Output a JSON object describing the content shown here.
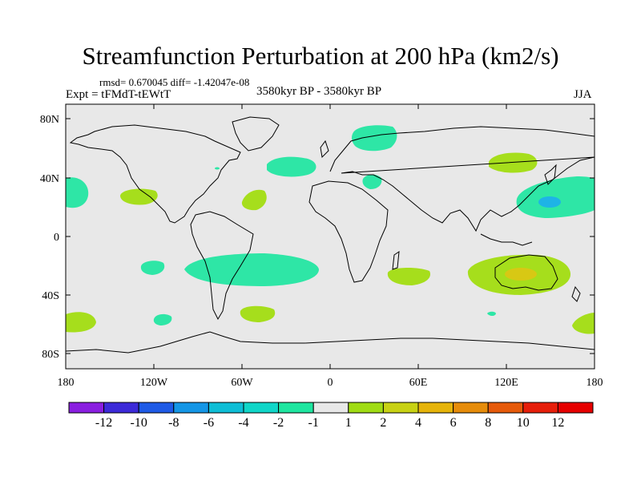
{
  "title": "Streamfunction Perturbation at 200 hPa (km2/s)",
  "stats": "rmsd= 0.670045 diff= -1.42047e-08",
  "experiment": "Expt = tFMdT-tEWtT",
  "period": "3580kyr BP - 3580kyr BP",
  "season": "JJA",
  "map": {
    "lat_ticks": [
      "80N",
      "40N",
      "0",
      "40S",
      "80S"
    ],
    "lon_ticks": [
      "180",
      "120W",
      "60W",
      "0",
      "60E",
      "120E",
      "180"
    ]
  },
  "colorbar": {
    "labels": [
      "-12",
      "-10",
      "-8",
      "-6",
      "-4",
      "-2",
      "-1",
      "1",
      "2",
      "4",
      "6",
      "8",
      "10",
      "12"
    ],
    "colors": [
      "#8a1ee0",
      "#3c2ad8",
      "#1e5ae6",
      "#1496e6",
      "#0ebed6",
      "#10d6c8",
      "#1ee6a0",
      "#e8e8e8",
      "#a0dc14",
      "#c8d214",
      "#e6b40a",
      "#e68c0a",
      "#e65a0a",
      "#e61e0a",
      "#e60000"
    ]
  },
  "colors": {
    "ocean_bg": "#e8e8e8",
    "neg_small": "#2ee6a6",
    "neg_mid": "#14c8d8",
    "neg_strong": "#1eb4e6",
    "pos_small": "#a6de1c",
    "pos_mid": "#d8c814",
    "pos_strong": "#e6b40a"
  }
}
